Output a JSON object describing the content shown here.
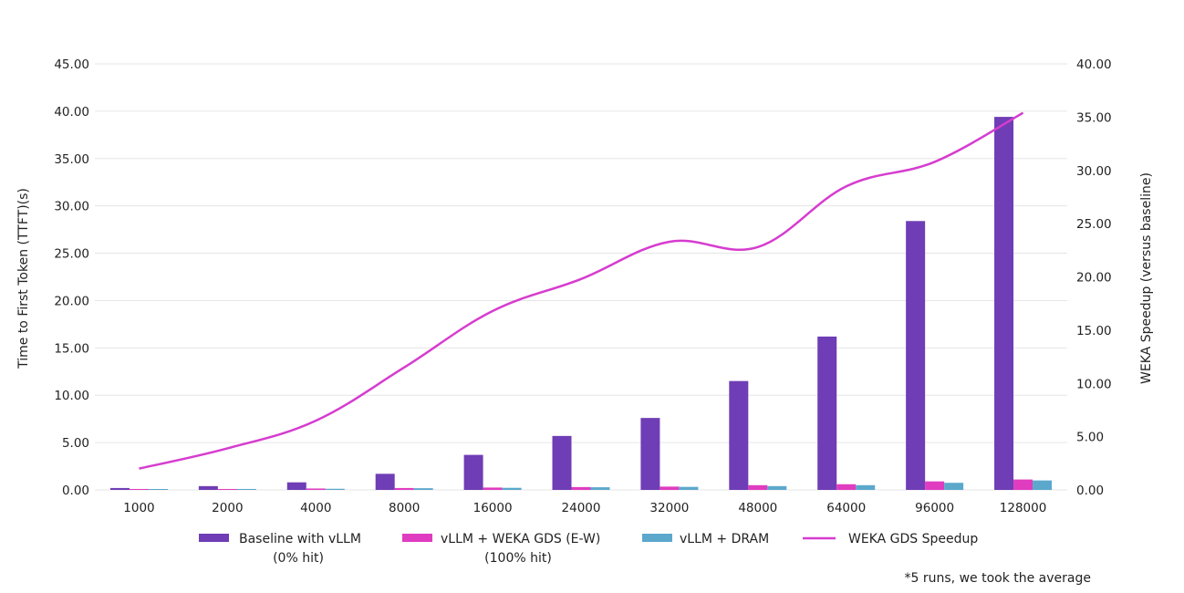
{
  "chart_data": {
    "type": "bar",
    "categories": [
      "1000",
      "2000",
      "4000",
      "8000",
      "16000",
      "24000",
      "32000",
      "48000",
      "64000",
      "96000",
      "128000"
    ],
    "series": [
      {
        "name": "Baseline with vLLM (0% hit)",
        "legend_lines": [
          "Baseline with vLLM",
          "(0% hit)"
        ],
        "axis": "left",
        "kind": "bar",
        "color": "#6f3db5",
        "values": [
          0.2,
          0.4,
          0.8,
          1.7,
          3.7,
          5.7,
          7.6,
          11.5,
          16.2,
          28.4,
          39.4
        ]
      },
      {
        "name": "vLLM + WEKA GDS (E-W) (100% hit)",
        "legend_lines": [
          "vLLM + WEKA GDS (E-W)",
          "(100% hit)"
        ],
        "axis": "left",
        "kind": "bar",
        "color": "#e03cc0",
        "values": [
          0.1,
          0.1,
          0.15,
          0.2,
          0.25,
          0.3,
          0.35,
          0.5,
          0.6,
          0.9,
          1.1
        ]
      },
      {
        "name": "vLLM + DRAM",
        "legend_lines": [
          "vLLM + DRAM"
        ],
        "axis": "left",
        "kind": "bar",
        "color": "#5ba8cc",
        "values": [
          0.08,
          0.1,
          0.12,
          0.18,
          0.22,
          0.28,
          0.32,
          0.4,
          0.5,
          0.75,
          1.0
        ]
      },
      {
        "name": "WEKA GDS Speedup",
        "legend_lines": [
          "WEKA GDS Speedup"
        ],
        "axis": "right",
        "kind": "line",
        "color": "#d63ccf",
        "values": [
          2.0,
          3.9,
          6.5,
          11.5,
          16.8,
          19.8,
          23.3,
          22.8,
          28.5,
          30.8,
          35.4
        ]
      }
    ],
    "y_left": {
      "label": "Time to First Token (TTFT)(s)",
      "ylim": [
        0,
        45
      ],
      "ticks": [
        "0.00",
        "5.00",
        "10.00",
        "15.00",
        "20.00",
        "25.00",
        "30.00",
        "35.00",
        "40.00",
        "45.00"
      ]
    },
    "y_right": {
      "label": "WEKA Speedup (versus baseline)",
      "ylim": [
        0,
        40
      ],
      "ticks": [
        "0.00",
        "5.00",
        "10.00",
        "15.00",
        "20.00",
        "25.00",
        "30.00",
        "35.00",
        "40.00"
      ]
    },
    "grid": true,
    "legend_position": "bottom",
    "footnote": "*5 runs, we took the average"
  }
}
